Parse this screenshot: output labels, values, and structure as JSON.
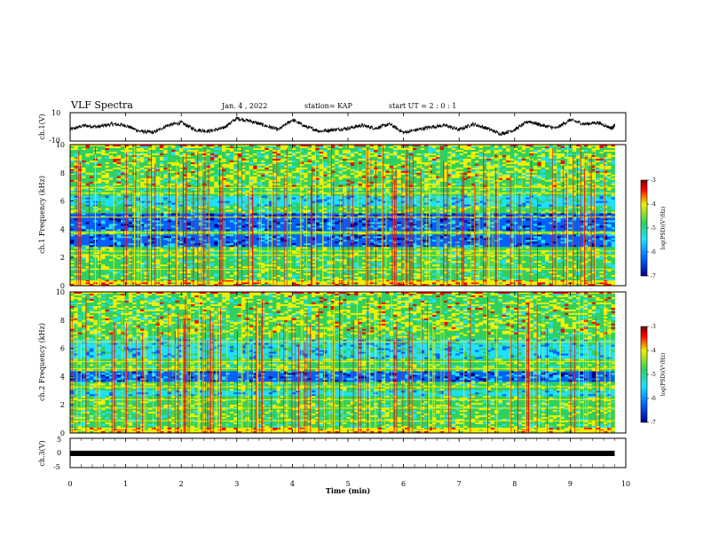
{
  "header": {
    "title": "VLF Spectra",
    "date": "Jan. 4 , 2022",
    "station": "station= KAP",
    "start": "start  UT =  2 : 0 : 1"
  },
  "chart_data": [
    {
      "type": "line",
      "panel": "ch1-waveform",
      "ylabel": "ch.1(V)",
      "ylim": [
        -10,
        10
      ],
      "yticks": [
        "10",
        "-10"
      ],
      "xlim": [
        0,
        10
      ],
      "x": [
        0.0,
        0.25,
        0.5,
        0.75,
        1.0,
        1.25,
        1.5,
        1.75,
        2.0,
        2.25,
        2.5,
        2.75,
        3.0,
        3.25,
        3.5,
        3.75,
        4.0,
        4.25,
        4.5,
        4.75,
        5.0,
        5.25,
        5.5,
        5.75,
        6.0,
        6.25,
        6.5,
        6.75,
        7.0,
        7.25,
        7.5,
        7.75,
        8.0,
        8.25,
        8.5,
        8.75,
        9.0,
        9.25,
        9.5,
        9.75,
        9.8
      ],
      "values": [
        -2,
        1,
        0,
        2,
        1,
        -3,
        -4,
        1,
        3,
        -2,
        -3,
        -1,
        6,
        4,
        1,
        -2,
        5,
        0,
        -3,
        -2,
        -1,
        1,
        -1,
        2,
        -4,
        -2,
        0,
        1,
        -2,
        2,
        -1,
        -5,
        -2,
        4,
        1,
        -1,
        5,
        2,
        3,
        -1,
        1
      ]
    },
    {
      "type": "heatmap",
      "panel": "ch1-spectrogram",
      "ylabel": "ch.1 Frequency (kHz)",
      "ylim": [
        0,
        10
      ],
      "yticks": [
        "0",
        "2",
        "4",
        "6",
        "8",
        "10"
      ],
      "xlim": [
        0,
        10
      ],
      "colorbar": {
        "label": "log(PSD)(V²/Hz)",
        "ticks": [
          "-3",
          "-4",
          "-5",
          "-6",
          "-7"
        ],
        "range": [
          -7,
          -3
        ]
      }
    },
    {
      "type": "heatmap",
      "panel": "ch2-spectrogram",
      "ylabel": "ch.2 Frequency (kHz)",
      "ylim": [
        0,
        10
      ],
      "yticks": [
        "0",
        "2",
        "4",
        "6",
        "8",
        "10"
      ],
      "xlim": [
        0,
        10
      ],
      "colorbar": {
        "label": "log(PSD)(V²/Hz)",
        "ticks": [
          "-3",
          "-4",
          "-5",
          "-6",
          "-7"
        ],
        "range": [
          -7,
          -3
        ]
      }
    },
    {
      "type": "line",
      "panel": "ch3-signal",
      "ylabel": "ch.3(V)",
      "ylim": [
        -5,
        5
      ],
      "yticks": [
        "5",
        "0",
        "-5"
      ],
      "xlim": [
        0,
        10
      ],
      "x": [
        0,
        9.8
      ],
      "values": [
        -0.5,
        -0.5
      ]
    }
  ],
  "xaxis": {
    "label": "Time (min)",
    "ticks": [
      "0",
      "1",
      "2",
      "3",
      "4",
      "5",
      "6",
      "7",
      "8",
      "9",
      "10"
    ]
  },
  "colors": {
    "low": "#000090",
    "mid_low": "#0060ff",
    "mid": "#20e0ff",
    "green": "#30d060",
    "yellow": "#f0f000",
    "high": "#ff0000",
    "max": "#800000"
  }
}
